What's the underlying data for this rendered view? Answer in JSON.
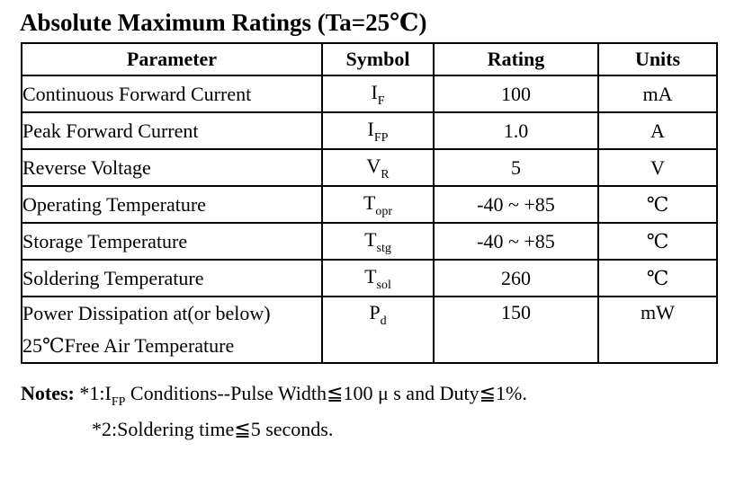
{
  "title": "Absolute Maximum Ratings (Ta=25℃)",
  "table": {
    "headers": {
      "parameter": "Parameter",
      "symbol": "Symbol",
      "rating": "Rating",
      "units": "Units"
    },
    "rows": [
      {
        "parameter": "Continuous Forward Current",
        "symbol_main": "I",
        "symbol_sub": "F",
        "rating": "100",
        "unit": "mA"
      },
      {
        "parameter": "Peak Forward Current",
        "symbol_main": "I",
        "symbol_sub": "FP",
        "rating": "1.0",
        "unit": "A"
      },
      {
        "parameter": "Reverse Voltage",
        "symbol_main": "V",
        "symbol_sub": "R",
        "rating": "5",
        "unit": "V"
      },
      {
        "parameter": "Operating Temperature",
        "symbol_main": "T",
        "symbol_sub": "opr",
        "rating": "-40 ~ +85",
        "unit": "℃"
      },
      {
        "parameter": "Storage Temperature",
        "symbol_main": "T",
        "symbol_sub": "stg",
        "rating": "-40 ~ +85",
        "unit": "℃"
      },
      {
        "parameter": "Soldering Temperature",
        "symbol_main": "T",
        "symbol_sub": "sol",
        "rating": "260",
        "unit": "℃"
      },
      {
        "parameter": "Power Dissipation at(or below)",
        "parameter_line2": "25℃Free Air Temperature",
        "symbol_main": "P",
        "symbol_sub": "d",
        "rating": "150",
        "unit": "mW"
      }
    ]
  },
  "notes": {
    "label": "Notes:",
    "note1_prefix": " *1:I",
    "note1_sub": "FP",
    "note1_suffix": " Conditions--Pulse Width≦100 μ s and Duty≦1%.",
    "note2": "*2:Soldering time≦5 seconds."
  }
}
